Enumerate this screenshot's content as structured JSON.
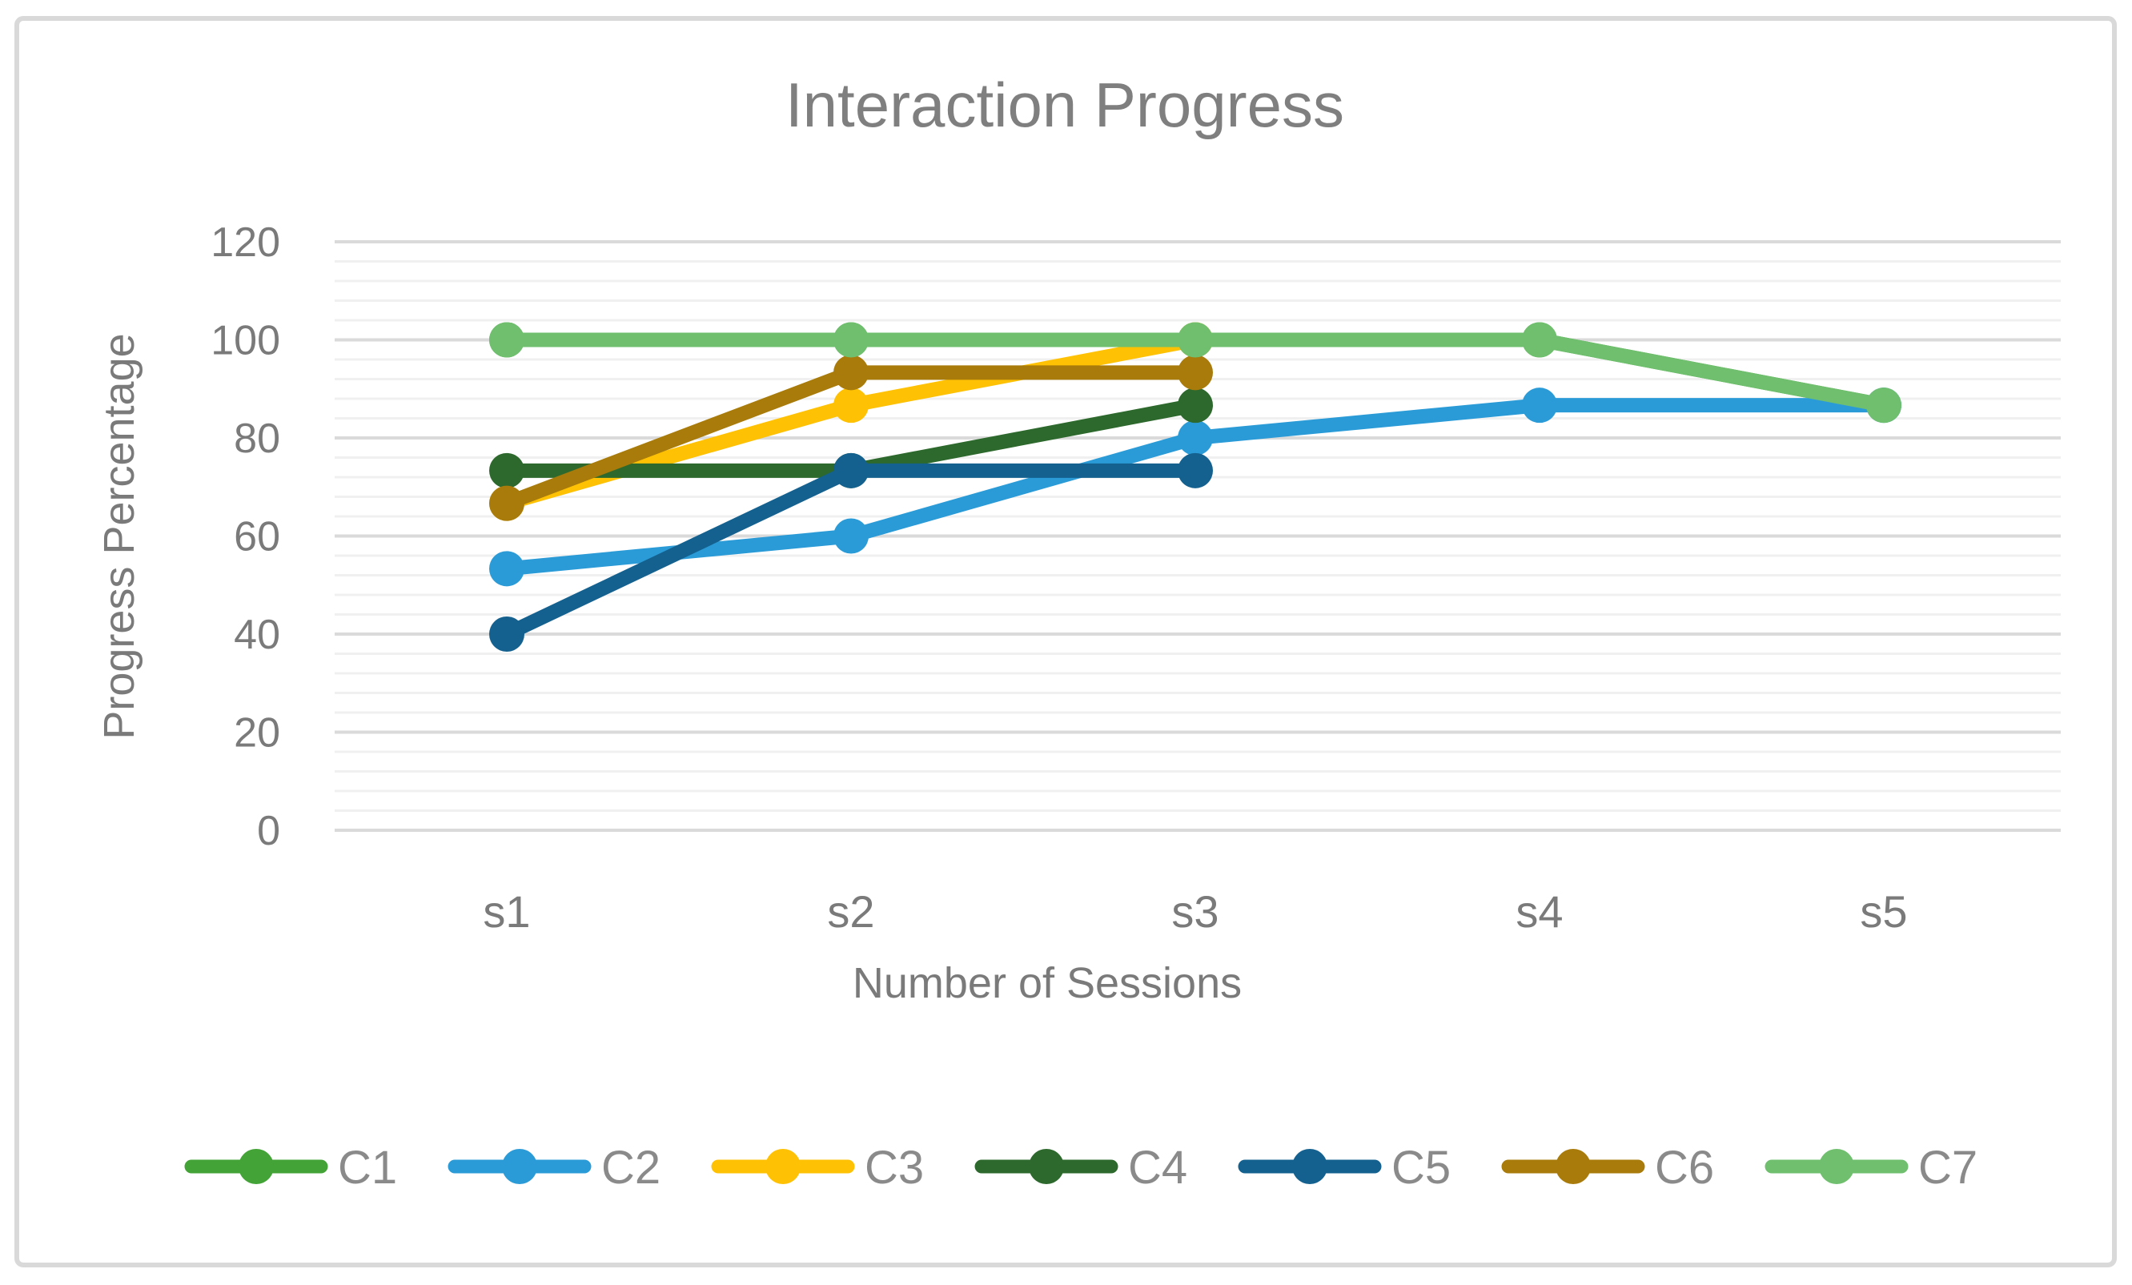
{
  "chart_data": {
    "type": "line",
    "title": "Interaction Progress",
    "xlabel": "Number of Sessions",
    "ylabel": "Progress Percentage",
    "categories": [
      "s1",
      "s2",
      "s3",
      "s4",
      "s5"
    ],
    "y_ticks": [
      0,
      20,
      40,
      60,
      80,
      100,
      120
    ],
    "ylim": [
      0,
      120
    ],
    "minor_grid_step": 4,
    "major_grid_step": 20,
    "grid": "horizontal major+minor",
    "legend_position": "bottom",
    "marker": "circle",
    "series": [
      {
        "name": "C1",
        "color": "#43A336",
        "values": [
          100,
          100,
          100,
          100,
          86.67
        ]
      },
      {
        "name": "C2",
        "color": "#2B9BD7",
        "values": [
          53.33,
          60,
          80,
          86.67,
          86.67
        ]
      },
      {
        "name": "C3",
        "color": "#FFC103",
        "values": [
          66.67,
          86.67,
          100,
          null,
          null
        ]
      },
      {
        "name": "C4",
        "color": "#2D692D",
        "values": [
          73.33,
          73.33,
          86.67,
          null,
          null
        ]
      },
      {
        "name": "C5",
        "color": "#14618F",
        "values": [
          40,
          73.33,
          73.33,
          null,
          null
        ]
      },
      {
        "name": "C6",
        "color": "#A87B0B",
        "values": [
          66.67,
          93.33,
          93.33,
          null,
          null
        ]
      },
      {
        "name": "C7",
        "color": "#6FBF6F",
        "values": [
          100,
          100,
          100,
          100,
          86.67
        ]
      }
    ]
  },
  "style_colors": {
    "title_text": "#7F7F7F",
    "axis_text": "#7A7A7A",
    "legend_text": "#8A8A8A",
    "major_gridline": "#DADADA",
    "minor_gridline": "#F0F0F0",
    "frame_border": "#D9D9D9",
    "background": "#FFFFFF"
  }
}
